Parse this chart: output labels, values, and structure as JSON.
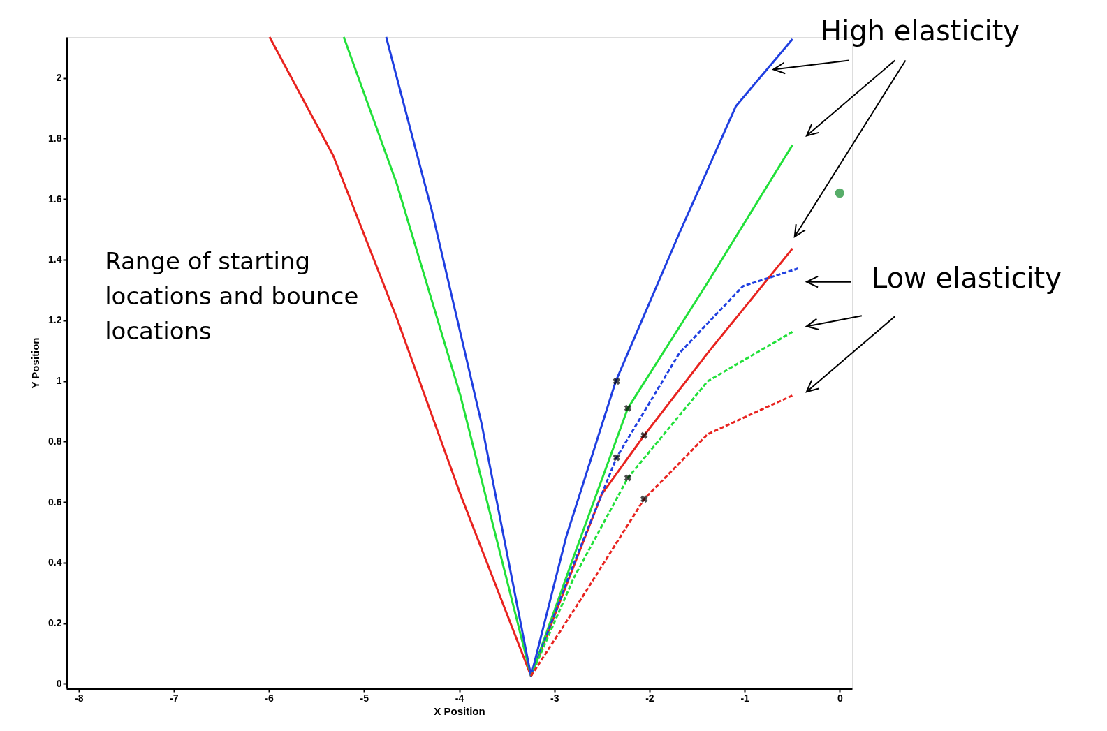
{
  "chart_data": {
    "type": "line",
    "xlabel": "X Position",
    "ylabel": "Y Position",
    "xlim": [
      -8.13,
      0.13
    ],
    "ylim": [
      -0.015,
      2.135
    ],
    "xticks": [
      -8,
      -7,
      -6,
      -5,
      -4,
      -3,
      -2,
      -1,
      0
    ],
    "yticks": [
      0,
      0.2,
      0.4,
      0.6,
      0.8,
      1,
      1.2,
      1.4,
      1.6,
      1.8,
      2
    ],
    "grid": false,
    "annotations": [
      "High elasticity",
      "Low elasticity",
      "Range of starting locations and bounce locations"
    ],
    "series": [
      {
        "color": "#e8231f",
        "line_style": "solid",
        "x": [
          -5.994,
          -5.325,
          -4.657,
          -3.988,
          -3.245,
          -2.502,
          -2.056,
          -1.388,
          -0.496
        ],
        "values": [
          2.135,
          1.744,
          1.208,
          0.626,
          0.026,
          0.626,
          0.82,
          1.092,
          1.437
        ]
      },
      {
        "color": "#22e03a",
        "line_style": "solid",
        "x": [
          -5.214,
          -4.657,
          -3.988,
          -3.245,
          -2.8,
          -2.227,
          -1.388,
          -0.496
        ],
        "values": [
          2.135,
          1.651,
          0.952,
          0.026,
          0.417,
          0.91,
          1.325,
          1.779
        ]
      },
      {
        "color": "#1f3fe0",
        "line_style": "solid",
        "x": [
          -4.768,
          -4.285,
          -3.765,
          -3.245,
          -2.874,
          -2.354,
          -1.685,
          -1.091,
          -0.496
        ],
        "values": [
          2.135,
          1.558,
          0.859,
          0.026,
          0.487,
          0.999,
          1.488,
          1.907,
          2.128
        ]
      },
      {
        "color": "#1f3fe0",
        "line_style": "dashed",
        "x": [
          -3.245,
          -2.8,
          -2.346,
          -1.685,
          -1.016,
          -0.437
        ],
        "values": [
          0.026,
          0.393,
          0.747,
          1.092,
          1.313,
          1.371
        ]
      },
      {
        "color": "#22e03a",
        "line_style": "dashed",
        "x": [
          -3.245,
          -2.8,
          -2.227,
          -1.388,
          -0.496
        ],
        "values": [
          0.026,
          0.347,
          0.68,
          0.999,
          1.162
        ]
      },
      {
        "color": "#e8231f",
        "line_style": "dashed",
        "x": [
          -3.245,
          -2.725,
          -2.056,
          -1.388,
          -0.496
        ],
        "values": [
          0.026,
          0.277,
          0.61,
          0.824,
          0.952
        ]
      },
      {
        "type": "scatter",
        "marker": "cross",
        "color": "#000000",
        "x": [
          -2.346,
          -2.227,
          -2.056,
          -2.346,
          -2.227,
          -2.056
        ],
        "values": [
          0.999,
          0.91,
          0.82,
          0.747,
          0.68,
          0.61
        ]
      },
      {
        "type": "scatter",
        "marker": "circle",
        "color": "#108a2a",
        "x": [
          0.0
        ],
        "values": [
          1.62
        ]
      }
    ]
  }
}
